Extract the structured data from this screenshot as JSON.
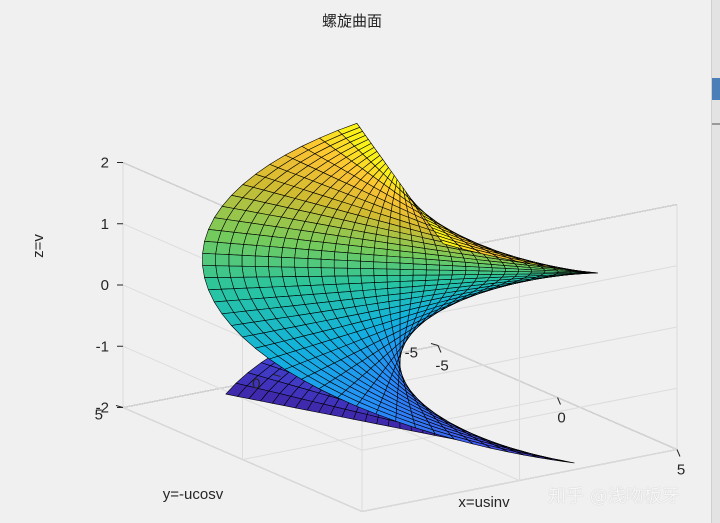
{
  "chart_data": {
    "type": "surface",
    "title": "螺旋曲面",
    "xlabel": "x=usinv",
    "ylabel": "y=-ucosv",
    "zlabel": "z=v",
    "xlim": [
      -5,
      5
    ],
    "ylim": [
      -5,
      5
    ],
    "zlim": [
      -2,
      2
    ],
    "xticks": [
      -5,
      0,
      5
    ],
    "yticks": [
      -5,
      0,
      5
    ],
    "zticks": [
      -2,
      -1,
      0,
      1,
      2
    ],
    "u_range": [
      -5,
      5
    ],
    "v_range": [
      -2,
      2
    ],
    "grid": true,
    "colormap": "parula",
    "edge_color": "#000000"
  },
  "watermark": "知乎 @浅吻板牙"
}
